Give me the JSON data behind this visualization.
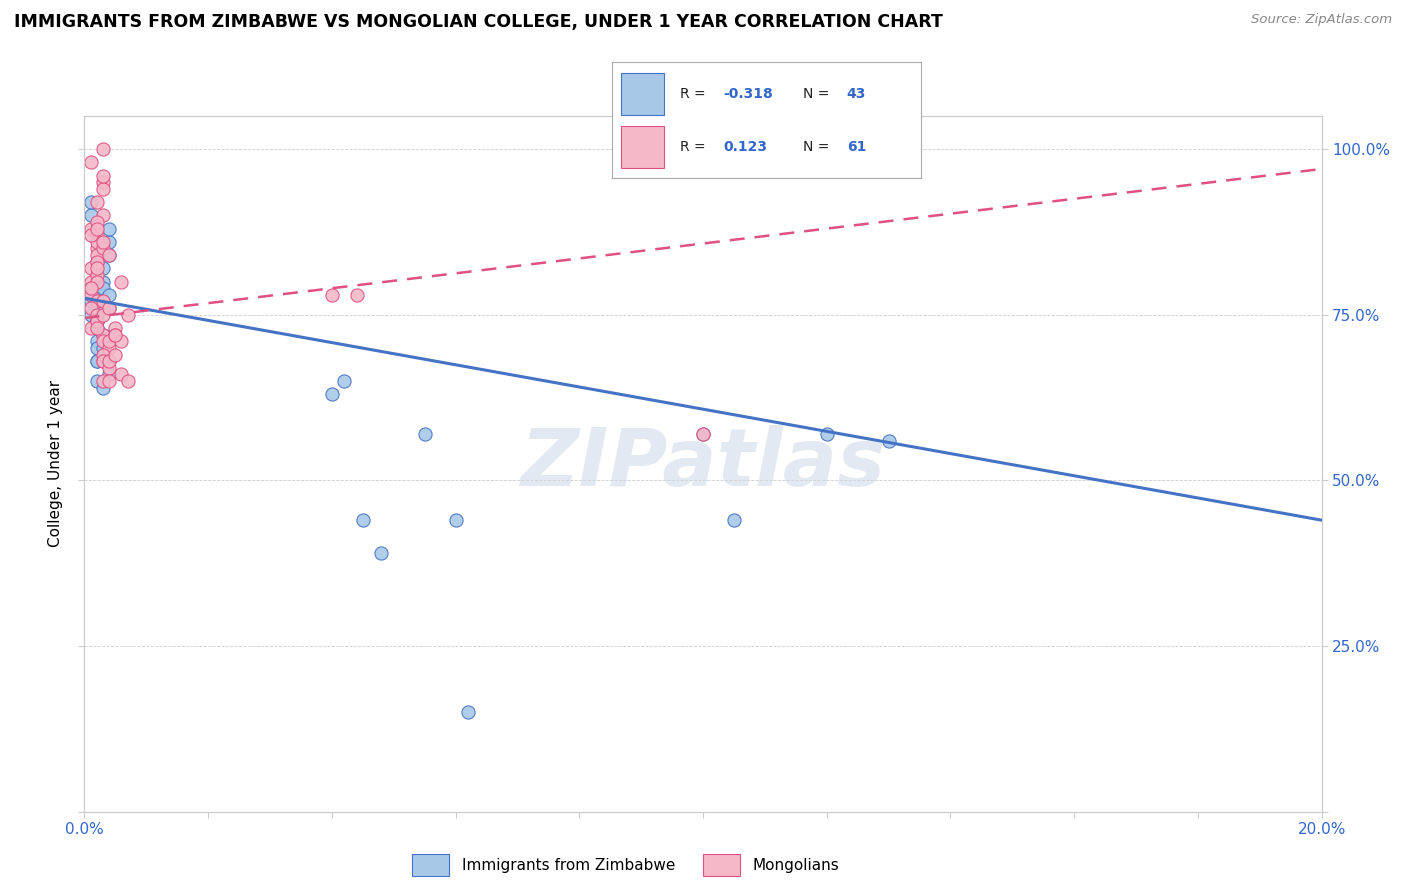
{
  "title": "IMMIGRANTS FROM ZIMBABWE VS MONGOLIAN COLLEGE, UNDER 1 YEAR CORRELATION CHART",
  "source": "Source: ZipAtlas.com",
  "ylabel": "College, Under 1 year",
  "legend_label1": "Immigrants from Zimbabwe",
  "legend_label2": "Mongolians",
  "r1": -0.318,
  "n1": 43,
  "r2": 0.123,
  "n2": 61,
  "color1": "#a8c8e8",
  "color2": "#f4b8c8",
  "edge_color1": "#4472c4",
  "edge_color2": "#e05080",
  "line_color1": "#4472c4",
  "line_color2": "#e05080",
  "xlim": [
    0.0,
    0.2
  ],
  "ylim": [
    0.0,
    1.05
  ],
  "xtick_positions": [
    0.0,
    0.02,
    0.04,
    0.06,
    0.08,
    0.1,
    0.12,
    0.14,
    0.16,
    0.18,
    0.2
  ],
  "xtick_labels_show": {
    "0.0": "0.0%",
    "0.20": "20.0%"
  },
  "ytick_positions": [
    0.0,
    0.25,
    0.5,
    0.75,
    1.0
  ],
  "ytick_labels": [
    "",
    "25.0%",
    "50.0%",
    "75.0%",
    "100.0%"
  ],
  "watermark": "ZIPatlas",
  "zim_line_x0": 0.0,
  "zim_line_y0": 0.775,
  "zim_line_x1": 0.2,
  "zim_line_y1": 0.44,
  "mon_line_x0": 0.0,
  "mon_line_y0": 0.745,
  "mon_line_x1": 0.2,
  "mon_line_y1": 0.97,
  "zimbabwe_x": [
    0.002,
    0.003,
    0.004,
    0.003,
    0.002,
    0.001,
    0.003,
    0.002,
    0.004,
    0.003,
    0.001,
    0.002,
    0.003,
    0.004,
    0.002,
    0.001,
    0.002,
    0.003,
    0.002,
    0.001,
    0.002,
    0.003,
    0.004,
    0.002,
    0.003,
    0.002,
    0.003,
    0.004,
    0.003,
    0.002,
    0.003,
    0.004,
    0.04,
    0.045,
    0.055,
    0.06,
    0.1,
    0.105,
    0.12,
    0.13,
    0.042,
    0.048,
    0.062
  ],
  "zimbabwe_y": [
    0.83,
    0.85,
    0.86,
    0.8,
    0.78,
    0.77,
    0.79,
    0.76,
    0.84,
    0.82,
    0.75,
    0.74,
    0.72,
    0.88,
    0.71,
    0.9,
    0.73,
    0.69,
    0.68,
    0.92,
    0.7,
    0.77,
    0.66,
    0.65,
    0.76,
    0.74,
    0.72,
    0.78,
    0.7,
    0.68,
    0.64,
    0.76,
    0.63,
    0.44,
    0.57,
    0.44,
    0.57,
    0.44,
    0.57,
    0.56,
    0.65,
    0.39,
    0.15
  ],
  "mongolian_x": [
    0.001,
    0.002,
    0.003,
    0.002,
    0.001,
    0.002,
    0.001,
    0.002,
    0.003,
    0.002,
    0.001,
    0.002,
    0.001,
    0.003,
    0.002,
    0.001,
    0.002,
    0.001,
    0.002,
    0.003,
    0.002,
    0.001,
    0.002,
    0.003,
    0.002,
    0.001,
    0.002,
    0.003,
    0.002,
    0.001,
    0.002,
    0.003,
    0.004,
    0.003,
    0.002,
    0.003,
    0.004,
    0.003,
    0.004,
    0.005,
    0.003,
    0.004,
    0.006,
    0.007,
    0.003,
    0.004,
    0.005,
    0.006,
    0.003,
    0.004,
    0.003,
    0.004,
    0.005,
    0.004,
    0.005,
    0.006,
    0.007,
    0.04,
    0.044,
    0.1,
    0.003
  ],
  "mongolian_y": [
    0.88,
    0.92,
    0.95,
    0.85,
    0.98,
    0.83,
    0.8,
    0.87,
    0.9,
    0.89,
    0.82,
    0.86,
    0.79,
    0.94,
    0.84,
    0.78,
    0.77,
    0.76,
    0.81,
    0.96,
    0.75,
    0.73,
    0.8,
    0.85,
    0.83,
    0.87,
    0.74,
    0.72,
    0.82,
    0.79,
    0.73,
    0.71,
    0.7,
    0.68,
    0.88,
    0.86,
    0.84,
    0.75,
    0.71,
    0.73,
    0.69,
    0.68,
    0.8,
    0.75,
    0.77,
    0.76,
    0.72,
    0.71,
    0.68,
    0.67,
    0.65,
    0.65,
    0.72,
    0.68,
    0.69,
    0.66,
    0.65,
    0.78,
    0.78,
    0.57,
    1.0
  ]
}
